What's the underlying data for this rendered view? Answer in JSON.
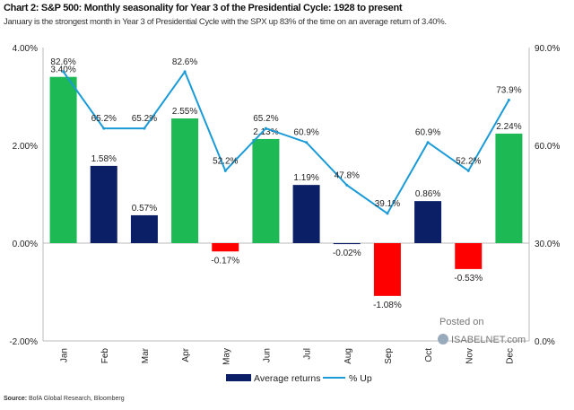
{
  "header": {
    "title": "Chart 2: S&P 500: Monthly seasonality for Year 3 of the Presidential Cycle: 1928 to present",
    "subtitle": "January is the strongest month in Year 3 of Presidential Cycle with the SPX up 83% of the time on an average return of 3.40%."
  },
  "footer": {
    "source_label": "Source:",
    "source_text": "BofA Global Research, Bloomberg"
  },
  "watermark": {
    "line1": "Posted on",
    "line2": "ISABELNET.com"
  },
  "chart_data": {
    "type": "bar+line",
    "categories": [
      "Jan",
      "Feb",
      "Mar",
      "Apr",
      "May",
      "Jun",
      "Jul",
      "Aug",
      "Sep",
      "Oct",
      "Nov",
      "Dec"
    ],
    "series": [
      {
        "name": "Average returns",
        "type": "bar",
        "axis": "left",
        "values": [
          3.4,
          1.58,
          0.57,
          2.55,
          -0.17,
          2.13,
          1.19,
          -0.02,
          -1.08,
          0.86,
          -0.53,
          2.24
        ],
        "labels": [
          "3.40%",
          "1.58%",
          "0.57%",
          "2.55%",
          "-0.17%",
          "2.13%",
          "1.19%",
          "-0.02%",
          "-1.08%",
          "0.86%",
          "-0.53%",
          "2.24%"
        ],
        "bar_colors": [
          "#1db954",
          "#0b1f66",
          "#0b1f66",
          "#1db954",
          "#ff0000",
          "#1db954",
          "#0b1f66",
          "#0b1f66",
          "#ff0000",
          "#0b1f66",
          "#ff0000",
          "#1db954"
        ]
      },
      {
        "name": "% Up",
        "type": "line",
        "axis": "right",
        "color": "#1a9bd7",
        "values": [
          82.6,
          65.2,
          65.2,
          82.6,
          52.2,
          65.2,
          60.9,
          47.8,
          39.1,
          60.9,
          52.2,
          73.9
        ],
        "labels": [
          "82.6%",
          "65.2%",
          "65.2%",
          "82.6%",
          "52.2%",
          "65.2%",
          "60.9%",
          "47.8%",
          "39.1%",
          "60.9%",
          "52.2%",
          "73.9%"
        ]
      }
    ],
    "y_left": {
      "ylim": [
        -2,
        4
      ],
      "ticks": [
        "4.00%",
        "2.00%",
        "0.00%",
        "-2.00%"
      ],
      "tick_values": [
        4,
        2,
        0,
        -2
      ]
    },
    "y_right": {
      "ylim": [
        0,
        90
      ],
      "ticks": [
        "90.0%",
        "60.0%",
        "30.0%",
        "0.0%"
      ],
      "tick_values": [
        90,
        60,
        30,
        0
      ]
    },
    "legend": {
      "position": "bottom",
      "entries": [
        "Average returns",
        "% Up"
      ],
      "bar_color": "#0b1f66",
      "line_color": "#1a9bd7"
    },
    "grid": false
  }
}
